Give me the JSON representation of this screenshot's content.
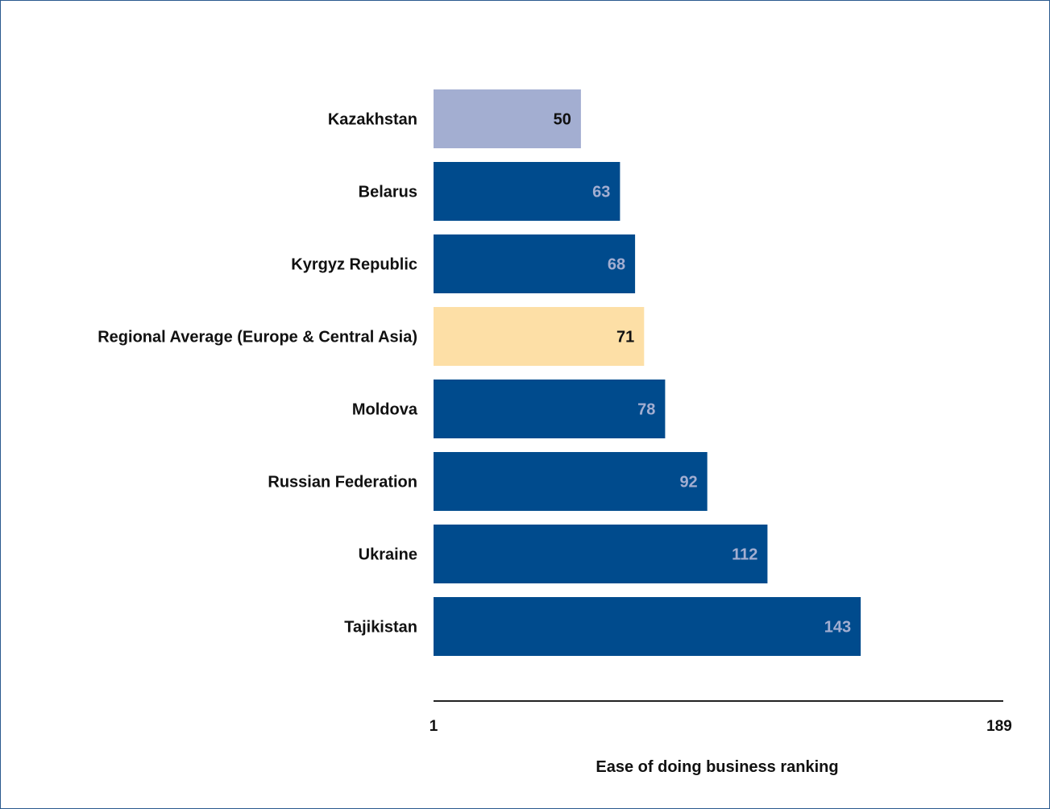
{
  "chart_data": {
    "type": "bar",
    "orientation": "horizontal",
    "title": "",
    "xlabel": "Ease of doing business ranking",
    "ylabel": "",
    "xlim": [
      1,
      189
    ],
    "x_ticks": [
      "1",
      "189"
    ],
    "grid": false,
    "categories": [
      "Kazakhstan",
      "Belarus",
      "Kyrgyz Republic",
      "Regional Average (Europe & Central Asia)",
      "Moldova",
      "Russian Federation",
      "Ukraine",
      "Tajikistan"
    ],
    "values": [
      50,
      63,
      68,
      71,
      78,
      92,
      112,
      143
    ],
    "bar_colors": [
      "#a3aed1",
      "#004b8d",
      "#004b8d",
      "#fddfa6",
      "#004b8d",
      "#004b8d",
      "#004b8d",
      "#004b8d"
    ],
    "label_colors": [
      "#111111",
      "#a3aed1",
      "#a3aed1",
      "#111111",
      "#a3aed1",
      "#a3aed1",
      "#a3aed1",
      "#a3aed1"
    ]
  },
  "colors": {
    "border": "#2a5a8f",
    "axis_line": "#222222"
  }
}
